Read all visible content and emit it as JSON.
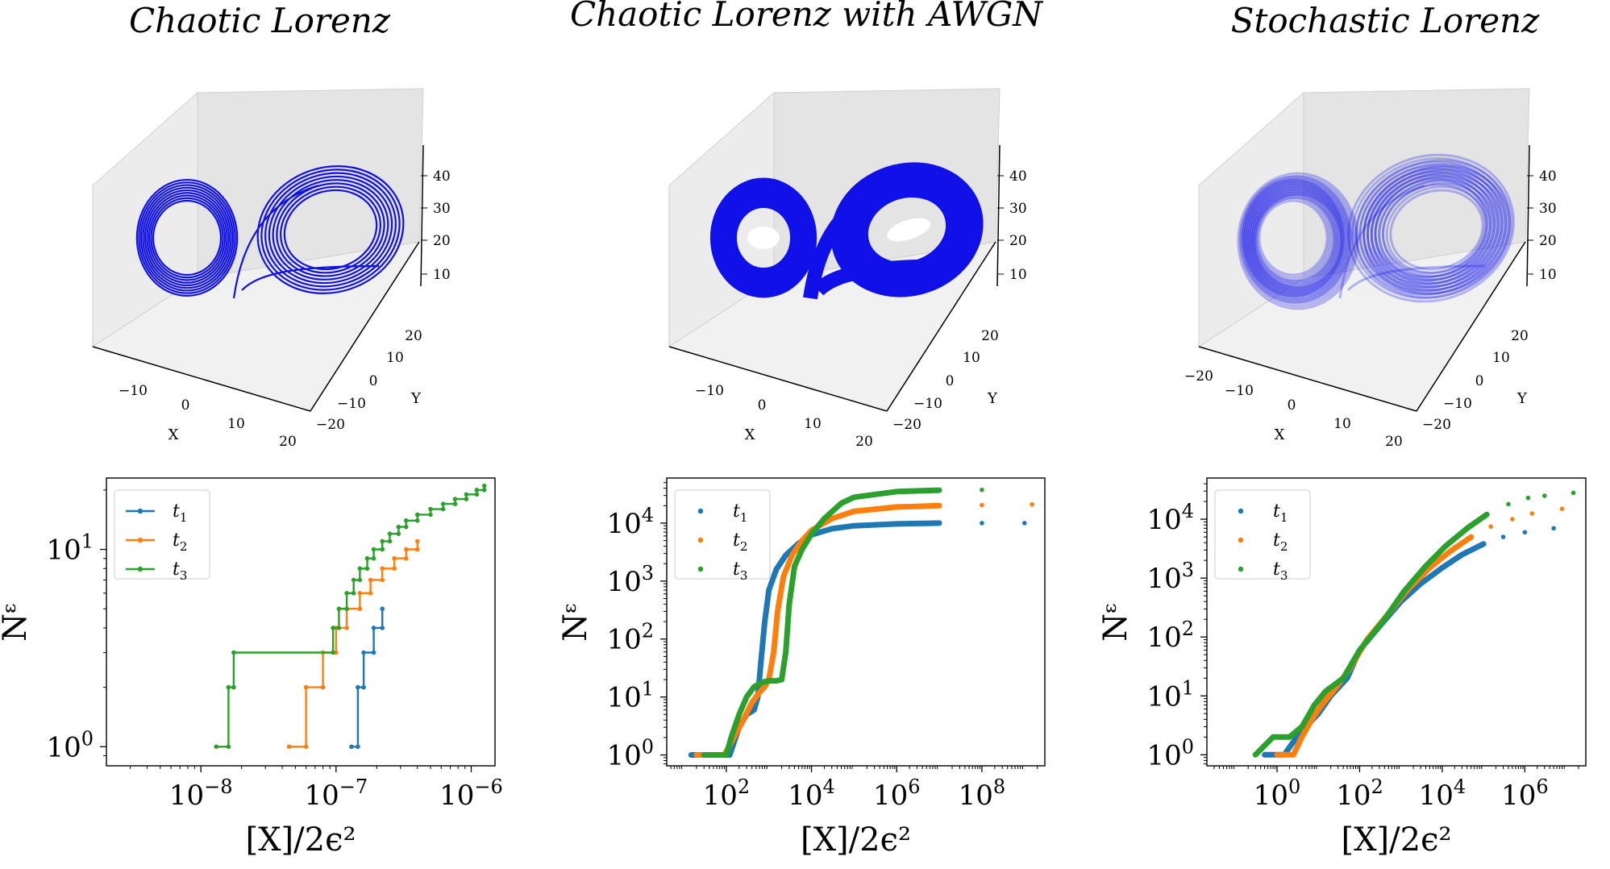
{
  "figure": {
    "titles": [
      "Chaotic Lorenz",
      "Chaotic Lorenz with AWGN",
      "Stochastic Lorenz"
    ]
  },
  "colors": {
    "trajectory": "#1010e8",
    "t1": "#1f77b4",
    "t2": "#ff7f0e",
    "t3": "#2ca02c",
    "pane": "#ececec",
    "pane_edge": "#d0d0d0"
  },
  "attractors": [
    {
      "title": "Chaotic Lorenz",
      "style": "line",
      "x_label": "X",
      "y_label": "Y",
      "x_ticks": [
        "−10",
        "0",
        "10",
        "20"
      ],
      "y_ticks": [
        "20",
        "10",
        "0",
        "−10",
        "−20"
      ],
      "z_ticks": [
        "40",
        "30",
        "20",
        "10"
      ]
    },
    {
      "title": "Chaotic Lorenz with AWGN",
      "style": "noisy",
      "x_label": "X",
      "y_label": "Y",
      "x_ticks": [
        "−10",
        "0",
        "10",
        "20"
      ],
      "y_ticks": [
        "20",
        "10",
        "0",
        "−10",
        "−20"
      ],
      "z_ticks": [
        "40",
        "30",
        "20",
        "10"
      ]
    },
    {
      "title": "Stochastic Lorenz",
      "style": "faint",
      "x_label": "X",
      "y_label": "Y",
      "x_ticks": [
        "−20",
        "−10",
        "0",
        "10",
        "20"
      ],
      "y_ticks": [
        "20",
        "10",
        "0",
        "−10",
        "−20"
      ],
      "z_ticks": [
        "40",
        "30",
        "20",
        "10"
      ]
    }
  ],
  "chart_data": [
    {
      "type": "scatter",
      "title": "Chaotic Lorenz",
      "xlabel": "[X]/2ϵ²",
      "ylabel": "Nᵋ",
      "xscale": "log",
      "yscale": "log",
      "xlim": [
        2e-09,
        1.5e-06
      ],
      "ylim": [
        0.8,
        23
      ],
      "x_ticks": [
        {
          "v": 1e-08,
          "base": "10",
          "exp": "−8"
        },
        {
          "v": 1e-07,
          "base": "10",
          "exp": "−7"
        },
        {
          "v": 1e-06,
          "base": "10",
          "exp": "−6"
        }
      ],
      "y_ticks": [
        {
          "v": 1,
          "base": "10",
          "exp": "0"
        },
        {
          "v": 10,
          "base": "10",
          "exp": "1"
        }
      ],
      "legend": "upper left",
      "grid": false,
      "series": [
        {
          "name": "t",
          "sub": "1",
          "style": "step",
          "points": [
            [
              1.3e-07,
              1
            ],
            [
              1.45e-07,
              1
            ],
            [
              1.45e-07,
              2
            ],
            [
              1.6e-07,
              2
            ],
            [
              1.6e-07,
              3
            ],
            [
              1.9e-07,
              3
            ],
            [
              1.9e-07,
              4
            ],
            [
              2.2e-07,
              4
            ],
            [
              2.2e-07,
              5
            ]
          ]
        },
        {
          "name": "t",
          "sub": "2",
          "style": "step",
          "points": [
            [
              4.5e-08,
              1
            ],
            [
              6e-08,
              1
            ],
            [
              6e-08,
              2
            ],
            [
              8e-08,
              2
            ],
            [
              8e-08,
              3
            ],
            [
              1e-07,
              3
            ],
            [
              1e-07,
              4
            ],
            [
              1.2e-07,
              4
            ],
            [
              1.2e-07,
              5
            ],
            [
              1.5e-07,
              5
            ],
            [
              1.5e-07,
              6
            ],
            [
              1.8e-07,
              6
            ],
            [
              1.8e-07,
              7
            ],
            [
              2.2e-07,
              7
            ],
            [
              2.2e-07,
              8
            ],
            [
              2.7e-07,
              8
            ],
            [
              2.7e-07,
              9
            ],
            [
              3.3e-07,
              9
            ],
            [
              3.3e-07,
              10
            ],
            [
              4e-07,
              10
            ],
            [
              4e-07,
              11
            ]
          ]
        },
        {
          "name": "t",
          "sub": "3",
          "style": "step",
          "points": [
            [
              1.3e-08,
              1
            ],
            [
              1.6e-08,
              1
            ],
            [
              1.6e-08,
              2
            ],
            [
              1.75e-08,
              2
            ],
            [
              1.75e-08,
              3
            ],
            [
              9.5e-08,
              3
            ],
            [
              9.5e-08,
              4
            ],
            [
              1.05e-07,
              4
            ],
            [
              1.05e-07,
              5
            ],
            [
              1.2e-07,
              5
            ],
            [
              1.2e-07,
              6
            ],
            [
              1.35e-07,
              6
            ],
            [
              1.35e-07,
              7
            ],
            [
              1.5e-07,
              7
            ],
            [
              1.5e-07,
              8
            ],
            [
              1.7e-07,
              8
            ],
            [
              1.7e-07,
              9
            ],
            [
              1.9e-07,
              9
            ],
            [
              1.9e-07,
              10
            ],
            [
              2.2e-07,
              10
            ],
            [
              2.2e-07,
              11
            ],
            [
              2.5e-07,
              11
            ],
            [
              2.5e-07,
              12
            ],
            [
              2.9e-07,
              12
            ],
            [
              2.9e-07,
              13
            ],
            [
              3.3e-07,
              13
            ],
            [
              3.3e-07,
              14
            ],
            [
              4e-07,
              14
            ],
            [
              4e-07,
              15
            ],
            [
              5e-07,
              15
            ],
            [
              5e-07,
              16
            ],
            [
              6.2e-07,
              16
            ],
            [
              6.2e-07,
              17
            ],
            [
              7.6e-07,
              17
            ],
            [
              7.6e-07,
              18
            ],
            [
              9.2e-07,
              18
            ],
            [
              9.2e-07,
              19
            ],
            [
              1.1e-06,
              19
            ],
            [
              1.1e-06,
              20
            ],
            [
              1.25e-06,
              20
            ],
            [
              1.25e-06,
              21
            ]
          ]
        }
      ]
    },
    {
      "type": "scatter",
      "title": "Chaotic Lorenz with AWGN",
      "xlabel": "[X]/2ϵ²",
      "ylabel": "Nᵋ",
      "xscale": "log",
      "yscale": "log",
      "xlim": [
        4,
        3000000000.0
      ],
      "ylim": [
        0.65,
        60000
      ],
      "x_ticks": [
        {
          "v": 100,
          "base": "10",
          "exp": "2"
        },
        {
          "v": 10000,
          "base": "10",
          "exp": "4"
        },
        {
          "v": 1000000,
          "base": "10",
          "exp": "6"
        },
        {
          "v": 100000000,
          "base": "10",
          "exp": "8"
        }
      ],
      "y_ticks": [
        {
          "v": 1,
          "base": "10",
          "exp": "0"
        },
        {
          "v": 10,
          "base": "10",
          "exp": "1"
        },
        {
          "v": 100,
          "base": "10",
          "exp": "2"
        },
        {
          "v": 1000,
          "base": "10",
          "exp": "3"
        },
        {
          "v": 10000,
          "base": "10",
          "exp": "4"
        }
      ],
      "legend": "upper left",
      "grid": false,
      "series": [
        {
          "name": "t",
          "sub": "1",
          "style": "dots",
          "points": [
            [
              15,
              1
            ],
            [
              40,
              1
            ],
            [
              80,
              1
            ],
            [
              120,
              1
            ],
            [
              200,
              3
            ],
            [
              300,
              5
            ],
            [
              450,
              6
            ],
            [
              550,
              10
            ],
            [
              650,
              40
            ],
            [
              800,
              200
            ],
            [
              1000,
              700
            ],
            [
              1500,
              1600
            ],
            [
              2500,
              2800
            ],
            [
              5000,
              4500
            ],
            [
              10000,
              6300
            ],
            [
              30000,
              8000
            ],
            [
              100000,
              9000
            ],
            [
              1000000,
              9700
            ],
            [
              10000000,
              10000
            ],
            [
              100000000,
              10000
            ],
            [
              1000000000,
              10000
            ]
          ]
        },
        {
          "name": "t",
          "sub": "2",
          "style": "dots",
          "points": [
            [
              20,
              1
            ],
            [
              50,
              1
            ],
            [
              90,
              1
            ],
            [
              150,
              2
            ],
            [
              250,
              4
            ],
            [
              400,
              8
            ],
            [
              600,
              12
            ],
            [
              800,
              15
            ],
            [
              1000,
              20
            ],
            [
              1300,
              60
            ],
            [
              1600,
              300
            ],
            [
              2200,
              1200
            ],
            [
              3500,
              2800
            ],
            [
              6000,
              5000
            ],
            [
              10000,
              7500
            ],
            [
              30000,
              12000
            ],
            [
              100000,
              16000
            ],
            [
              1000000,
              19000
            ],
            [
              10000000,
              20000
            ],
            [
              100000000,
              20500
            ],
            [
              1500000000,
              21000
            ]
          ]
        },
        {
          "name": "t",
          "sub": "3",
          "style": "dots",
          "points": [
            [
              30,
              1
            ],
            [
              60,
              1
            ],
            [
              100,
              1
            ],
            [
              130,
              2
            ],
            [
              200,
              5
            ],
            [
              300,
              10
            ],
            [
              450,
              15
            ],
            [
              700,
              18
            ],
            [
              1000,
              19
            ],
            [
              1500,
              19
            ],
            [
              2000,
              20
            ],
            [
              2500,
              60
            ],
            [
              3000,
              400
            ],
            [
              4000,
              1800
            ],
            [
              6000,
              3500
            ],
            [
              10000,
              6500
            ],
            [
              20000,
              12000
            ],
            [
              50000,
              22000
            ],
            [
              100000,
              28000
            ],
            [
              1000000,
              35000
            ],
            [
              10000000,
              37000
            ],
            [
              100000000,
              37500
            ],
            [
              5000000000,
              38000
            ]
          ]
        }
      ]
    },
    {
      "type": "scatter",
      "title": "Stochastic Lorenz",
      "xlabel": "[X]/2ϵ²",
      "ylabel": "Nᵋ",
      "xscale": "log",
      "yscale": "log",
      "xlim": [
        0.02,
        30000000.0
      ],
      "ylim": [
        0.65,
        50000
      ],
      "x_ticks": [
        {
          "v": 1,
          "base": "10",
          "exp": "0"
        },
        {
          "v": 100,
          "base": "10",
          "exp": "2"
        },
        {
          "v": 10000,
          "base": "10",
          "exp": "4"
        },
        {
          "v": 1000000,
          "base": "10",
          "exp": "6"
        }
      ],
      "y_ticks": [
        {
          "v": 1,
          "base": "10",
          "exp": "0"
        },
        {
          "v": 10,
          "base": "10",
          "exp": "1"
        },
        {
          "v": 100,
          "base": "10",
          "exp": "2"
        },
        {
          "v": 1000,
          "base": "10",
          "exp": "3"
        },
        {
          "v": 10000,
          "base": "10",
          "exp": "4"
        }
      ],
      "legend": "upper left",
      "grid": false,
      "series": [
        {
          "name": "t",
          "sub": "1",
          "style": "dots",
          "points": [
            [
              0.5,
              1
            ],
            [
              1.5,
              1
            ],
            [
              3,
              2
            ],
            [
              5,
              3
            ],
            [
              10,
              5
            ],
            [
              20,
              10
            ],
            [
              50,
              20
            ],
            [
              100,
              60
            ],
            [
              300,
              150
            ],
            [
              1000,
              400
            ],
            [
              3000,
              800
            ],
            [
              10000,
              1500
            ],
            [
              30000,
              2500
            ],
            [
              100000,
              3800
            ],
            [
              300000,
              5000
            ],
            [
              1000000,
              6000
            ],
            [
              5000000,
              7000
            ]
          ]
        },
        {
          "name": "t",
          "sub": "2",
          "style": "dots",
          "points": [
            [
              1,
              1
            ],
            [
              2.5,
              1
            ],
            [
              4,
              2
            ],
            [
              7,
              4
            ],
            [
              12,
              7
            ],
            [
              25,
              13
            ],
            [
              60,
              30
            ],
            [
              150,
              90
            ],
            [
              500,
              250
            ],
            [
              1500,
              650
            ],
            [
              5000,
              1500
            ],
            [
              15000,
              2800
            ],
            [
              50000,
              5000
            ],
            [
              150000,
              7500
            ],
            [
              500000,
              10000
            ],
            [
              1500000,
              12500
            ],
            [
              8000000,
              15000
            ]
          ]
        },
        {
          "name": "t",
          "sub": "3",
          "style": "dots",
          "points": [
            [
              0.3,
              1
            ],
            [
              0.8,
              2
            ],
            [
              2,
              2
            ],
            [
              4,
              3
            ],
            [
              8,
              7
            ],
            [
              15,
              12
            ],
            [
              40,
              20
            ],
            [
              100,
              60
            ],
            [
              400,
              200
            ],
            [
              1200,
              600
            ],
            [
              4000,
              1600
            ],
            [
              12000,
              3500
            ],
            [
              40000,
              7000
            ],
            [
              120000,
              12000
            ],
            [
              400000,
              18000
            ],
            [
              1200000,
              23000
            ],
            [
              3000000,
              25000
            ],
            [
              15000000,
              28000
            ]
          ]
        }
      ]
    }
  ]
}
